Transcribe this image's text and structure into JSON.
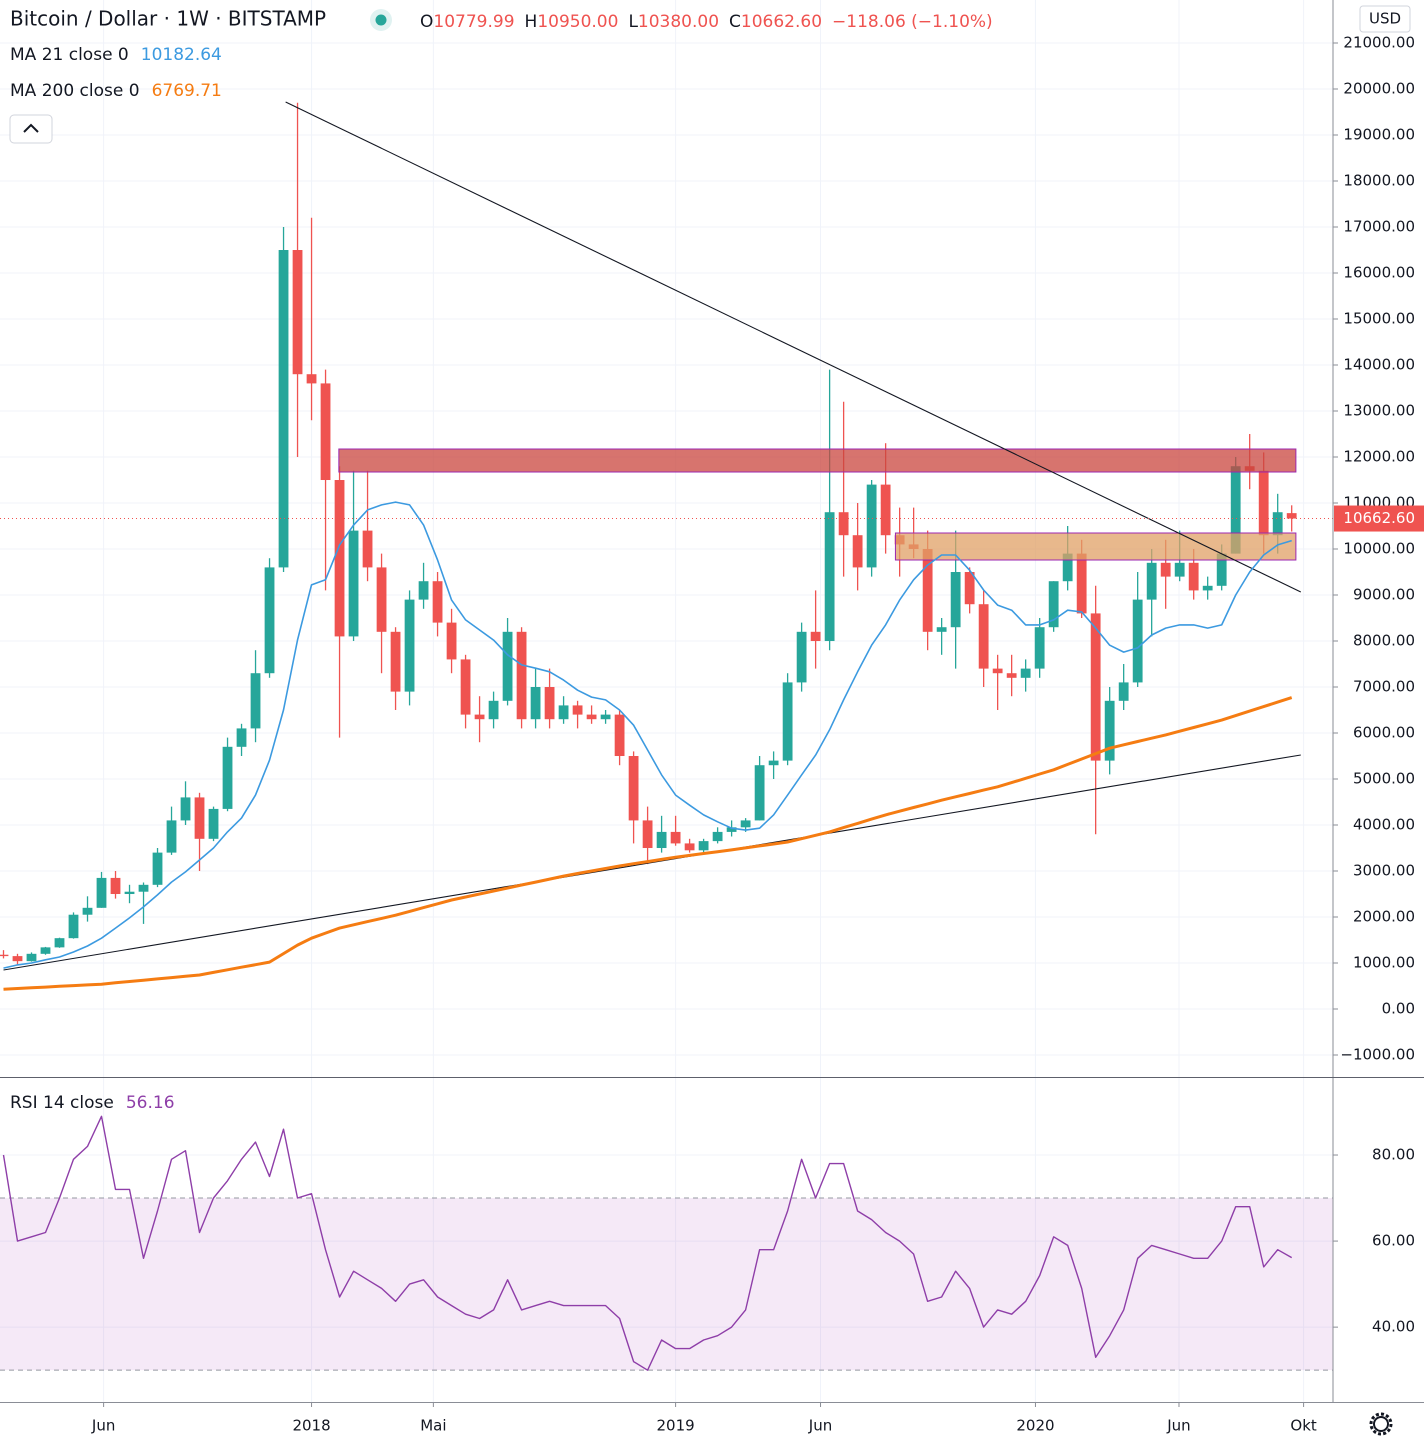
{
  "chart_data": [
    {
      "type": "candlestick",
      "title": "Bitcoin / Dollar · 1W · BITSTAMP",
      "currency": "USD",
      "ohlc_legend": [
        {
          "key": "O",
          "label": "10779.99"
        },
        {
          "key": "H",
          "label": "10950.00"
        },
        {
          "key": "L",
          "label": "10380.00"
        },
        {
          "key": "C",
          "label": "10662.60"
        }
      ],
      "change_label": "−118.06 (−1.10%)",
      "last_price_label": "10662.60",
      "up_color": "#26a69a",
      "down_color": "#ef5350",
      "x": [
        0,
        2,
        4,
        6,
        8,
        10,
        12,
        14,
        16,
        18,
        20,
        22,
        24,
        26,
        28,
        30,
        32,
        34,
        36,
        38,
        40,
        42,
        44,
        46,
        48,
        50,
        52,
        54,
        56,
        58,
        60,
        62,
        64,
        66,
        68,
        70,
        72,
        74,
        76,
        78,
        80,
        82,
        84,
        86,
        88,
        90,
        92,
        94,
        96,
        98,
        100,
        102,
        104,
        106,
        108,
        110,
        112,
        114,
        116,
        118,
        120,
        122,
        124,
        126,
        128,
        130,
        132,
        134,
        136,
        138,
        140,
        142,
        144,
        146,
        148,
        150,
        152,
        154,
        156,
        158,
        160,
        162,
        164,
        166,
        168,
        170,
        172,
        174,
        176,
        178,
        180,
        182,
        184
      ],
      "open": [
        1180,
        1150,
        1040,
        1200,
        1340,
        1540,
        2050,
        2200,
        2850,
        2500,
        2550,
        2700,
        3400,
        4100,
        4600,
        3700,
        4350,
        5700,
        6100,
        7300,
        9600,
        16500,
        13800,
        13600,
        11500,
        8100,
        10400,
        9600,
        8200,
        6900,
        8900,
        9300,
        8400,
        7600,
        6400,
        6300,
        6700,
        8200,
        6300,
        7000,
        6300,
        6600,
        6400,
        6300,
        6400,
        5500,
        4100,
        3500,
        3850,
        3600,
        3450,
        3650,
        3850,
        3950,
        4100,
        5300,
        5400,
        7100,
        8200,
        8000,
        10800,
        10300,
        9600,
        11400,
        10300,
        10100,
        10000,
        8200,
        8300,
        9500,
        8800,
        7400,
        7300,
        7200,
        7400,
        8300,
        9300,
        9900,
        8600,
        5400,
        6700,
        7100,
        8900,
        9700,
        9400,
        9700,
        9100,
        9200,
        9900,
        11800,
        11700,
        10300,
        10779.99
      ],
      "high": [
        1280,
        1200,
        1230,
        1350,
        1550,
        2100,
        2450,
        2980,
        3000,
        2700,
        2750,
        3500,
        4400,
        4950,
        4700,
        4400,
        5900,
        6200,
        7800,
        9800,
        17000,
        19700,
        17200,
        13900,
        11800,
        11700,
        11700,
        9900,
        8300,
        9100,
        9700,
        9500,
        8700,
        7700,
        6800,
        6900,
        8500,
        8300,
        7400,
        7400,
        6800,
        6700,
        6600,
        6500,
        6500,
        5600,
        4400,
        4200,
        4200,
        3700,
        3700,
        3950,
        4100,
        4150,
        5500,
        5600,
        7300,
        8400,
        9100,
        13900,
        13200,
        11000,
        11500,
        12300,
        10900,
        10900,
        10400,
        8500,
        10400,
        9600,
        9100,
        7700,
        7700,
        7600,
        8500,
        9300,
        10500,
        10200,
        9200,
        7000,
        7500,
        9500,
        10000,
        10200,
        10400,
        10000,
        9400,
        10100,
        12000,
        12500,
        12100,
        11200,
        10950
      ],
      "low": [
        1100,
        950,
        1030,
        1180,
        1330,
        1530,
        1900,
        2200,
        2400,
        2300,
        1850,
        2650,
        3350,
        4000,
        3000,
        3650,
        4300,
        5500,
        5800,
        7200,
        9500,
        12000,
        12800,
        9100,
        5900,
        8000,
        9300,
        7300,
        6500,
        6600,
        8700,
        8100,
        7300,
        6100,
        5800,
        6100,
        6600,
        6100,
        6100,
        6100,
        6200,
        6100,
        6200,
        6200,
        5300,
        3600,
        3150,
        3400,
        3550,
        3400,
        3400,
        3600,
        3750,
        3850,
        4100,
        5000,
        5300,
        6900,
        7400,
        7800,
        9400,
        9100,
        9400,
        9900,
        9400,
        9800,
        7800,
        7700,
        7400,
        8600,
        7000,
        6500,
        6800,
        6900,
        7200,
        8200,
        9100,
        8500,
        3800,
        5100,
        6500,
        7000,
        8100,
        8700,
        9300,
        8900,
        8900,
        9100,
        9900,
        11300,
        9900,
        9900,
        10380
      ],
      "close": [
        1150,
        1040,
        1200,
        1340,
        1540,
        2050,
        2200,
        2850,
        2500,
        2550,
        2700,
        3400,
        4100,
        4600,
        3700,
        4350,
        5700,
        6100,
        7300,
        9600,
        16500,
        13800,
        13600,
        11500,
        8100,
        10400,
        9600,
        8200,
        6900,
        8900,
        9300,
        8400,
        7600,
        6400,
        6300,
        6700,
        8200,
        6300,
        7000,
        6300,
        6600,
        6400,
        6300,
        6400,
        5500,
        4100,
        3500,
        3850,
        3600,
        3450,
        3650,
        3850,
        3950,
        4100,
        5300,
        5400,
        7100,
        8200,
        8000,
        10800,
        10300,
        9600,
        11400,
        10300,
        10100,
        10000,
        8200,
        8300,
        9500,
        8800,
        7400,
        7300,
        7200,
        7400,
        8300,
        9300,
        9900,
        8600,
        5400,
        6700,
        7100,
        8900,
        9700,
        9400,
        9700,
        9100,
        9200,
        9900,
        11800,
        11700,
        10300,
        10800,
        10662.6
      ],
      "series": [
        {
          "name": "MA 21 close 0",
          "color": "#3c9ae0",
          "values": [
            890,
            960,
            1000,
            1070,
            1130,
            1240,
            1370,
            1540,
            1760,
            1980,
            2220,
            2480,
            2760,
            2980,
            3240,
            3500,
            3850,
            4150,
            4650,
            5410,
            6500,
            8020,
            9220,
            9330,
            10090,
            10520,
            10850,
            10960,
            11020,
            10960,
            10520,
            9760,
            8890,
            8460,
            8240,
            8020,
            7700,
            7480,
            7410,
            7330,
            7150,
            6930,
            6780,
            6720,
            6500,
            6170,
            5630,
            5090,
            4650,
            4430,
            4220,
            4070,
            3930,
            3890,
            3930,
            4220,
            4650,
            5090,
            5520,
            6070,
            6720,
            7330,
            7910,
            8350,
            8890,
            9330,
            9650,
            9870,
            9870,
            9540,
            9110,
            8780,
            8670,
            8350,
            8350,
            8460,
            8670,
            8630,
            8280,
            7910,
            7760,
            7850,
            8130,
            8280,
            8350,
            8350,
            8280,
            8350,
            9000,
            9500,
            9870,
            10090,
            10182.64
          ]
        },
        {
          "name": "MA 200 close 0",
          "color": "#f57c12",
          "values": [
            430,
            446,
            461,
            477,
            493,
            509,
            524,
            540,
            569,
            597,
            626,
            654,
            683,
            711,
            740,
            796,
            852,
            908,
            964,
            1020,
            1205,
            1390,
            1540,
            1650,
            1760,
            1830,
            1900,
            1970,
            2040,
            2123,
            2205,
            2288,
            2370,
            2435,
            2500,
            2565,
            2630,
            2695,
            2760,
            2825,
            2890,
            2945,
            3000,
            3055,
            3110,
            3158,
            3205,
            3253,
            3300,
            3340,
            3380,
            3420,
            3460,
            3503,
            3545,
            3588,
            3630,
            3703,
            3777,
            3850,
            3943,
            4035,
            4128,
            4220,
            4300,
            4380,
            4460,
            4540,
            4613,
            4685,
            4758,
            4830,
            4923,
            5015,
            5108,
            5200,
            5318,
            5435,
            5553,
            5670,
            5743,
            5815,
            5888,
            5960,
            6040,
            6120,
            6200,
            6280,
            6378,
            6476,
            6574,
            6672,
            6769.71
          ]
        }
      ],
      "trendlines": [
        {
          "x": [
            40.3,
            185.3
          ],
          "y": [
            19717,
            9065
          ],
          "color": "#131722"
        },
        {
          "x": [
            0,
            185.3
          ],
          "y": [
            848,
            5522
          ],
          "color": "#131722"
        }
      ],
      "zones": [
        {
          "x": [
            47.9,
            184.6
          ],
          "y": [
            11674,
            12174
          ],
          "color": "#c9463d",
          "border": "#9c27b0"
        },
        {
          "x": [
            127.4,
            184.6
          ],
          "y": [
            9761,
            10348
          ],
          "color": "#e0a066",
          "border": "#9c27b0"
        }
      ],
      "xlim": [
        -0.5,
        189.9
      ],
      "ylim": [
        -1478,
        21935
      ],
      "yticks": [
        {
          "value": -1000,
          "label": "−1000.00"
        },
        {
          "value": 0,
          "label": "0.00"
        },
        {
          "value": 1000,
          "label": "1000.00"
        },
        {
          "value": 2000,
          "label": "2000.00"
        },
        {
          "value": 3000,
          "label": "3000.00"
        },
        {
          "value": 4000,
          "label": "4000.00"
        },
        {
          "value": 5000,
          "label": "5000.00"
        },
        {
          "value": 6000,
          "label": "6000.00"
        },
        {
          "value": 7000,
          "label": "7000.00"
        },
        {
          "value": 8000,
          "label": "8000.00"
        },
        {
          "value": 9000,
          "label": "9000.00"
        },
        {
          "value": 10000,
          "label": "10000.00"
        },
        {
          "value": 11000,
          "label": "11000.00"
        },
        {
          "value": 12000,
          "label": "12000.00"
        },
        {
          "value": 13000,
          "label": "13000.00"
        },
        {
          "value": 14000,
          "label": "14000.00"
        },
        {
          "value": 15000,
          "label": "15000.00"
        },
        {
          "value": 16000,
          "label": "16000.00"
        },
        {
          "value": 17000,
          "label": "17000.00"
        },
        {
          "value": 18000,
          "label": "18000.00"
        },
        {
          "value": 19000,
          "label": "19000.00"
        },
        {
          "value": 20000,
          "label": "20000.00"
        },
        {
          "value": 21000,
          "label": "21000.00"
        }
      ],
      "grid": true
    },
    {
      "type": "line",
      "x": [
        0,
        2,
        4,
        6,
        8,
        10,
        12,
        14,
        16,
        18,
        20,
        22,
        24,
        26,
        28,
        30,
        32,
        34,
        36,
        38,
        40,
        42,
        44,
        46,
        48,
        50,
        52,
        54,
        56,
        58,
        60,
        62,
        64,
        66,
        68,
        70,
        72,
        74,
        76,
        78,
        80,
        82,
        84,
        86,
        88,
        90,
        92,
        94,
        96,
        98,
        100,
        102,
        104,
        106,
        108,
        110,
        112,
        114,
        116,
        118,
        120,
        122,
        124,
        126,
        128,
        130,
        132,
        134,
        136,
        138,
        140,
        142,
        144,
        146,
        148,
        150,
        152,
        154,
        156,
        158,
        160,
        162,
        164,
        166,
        168,
        170,
        172,
        174,
        176,
        178,
        180,
        182,
        184
      ],
      "series": [
        {
          "name": "RSI 14 close",
          "color": "#8e3ea8",
          "values": [
            80,
            60,
            61,
            62,
            70,
            79,
            82,
            89,
            72,
            72,
            56,
            67,
            79,
            81,
            62,
            70,
            74,
            79,
            83,
            75,
            86,
            70,
            71,
            58,
            47,
            53,
            51,
            49,
            46,
            50,
            51,
            47,
            45,
            43,
            42,
            44,
            51,
            44,
            45,
            46,
            45,
            45,
            45,
            45,
            42,
            32,
            30,
            37,
            35,
            35,
            37,
            38,
            40,
            44,
            58,
            58,
            67,
            79,
            70,
            78,
            78,
            67,
            65,
            62,
            60,
            57,
            46,
            47,
            53,
            49,
            40,
            44,
            43,
            46,
            52,
            61,
            59,
            49,
            33,
            38,
            44,
            56,
            59,
            58,
            57,
            56,
            56,
            60,
            68,
            68,
            54,
            58,
            56.16
          ]
        }
      ],
      "band": [
        30,
        70
      ],
      "band_color": "#9c27b0",
      "xlim": [
        -0.5,
        189.9
      ],
      "xticks": [
        {
          "value": 14.3,
          "label": "Jun"
        },
        {
          "value": 44,
          "label": "2018"
        },
        {
          "value": 61.4,
          "label": "Mai"
        },
        {
          "value": 96,
          "label": "2019"
        },
        {
          "value": 116.7,
          "label": "Jun"
        },
        {
          "value": 147.4,
          "label": "2020"
        },
        {
          "value": 167.9,
          "label": "Jun"
        },
        {
          "value": 185.7,
          "label": "Okt"
        }
      ],
      "ylim": [
        22.6,
        97.9
      ],
      "yticks": [
        {
          "value": 40,
          "label": "40.00"
        },
        {
          "value": 60,
          "label": "60.00"
        },
        {
          "value": 80,
          "label": "80.00"
        }
      ],
      "grid": true
    }
  ]
}
